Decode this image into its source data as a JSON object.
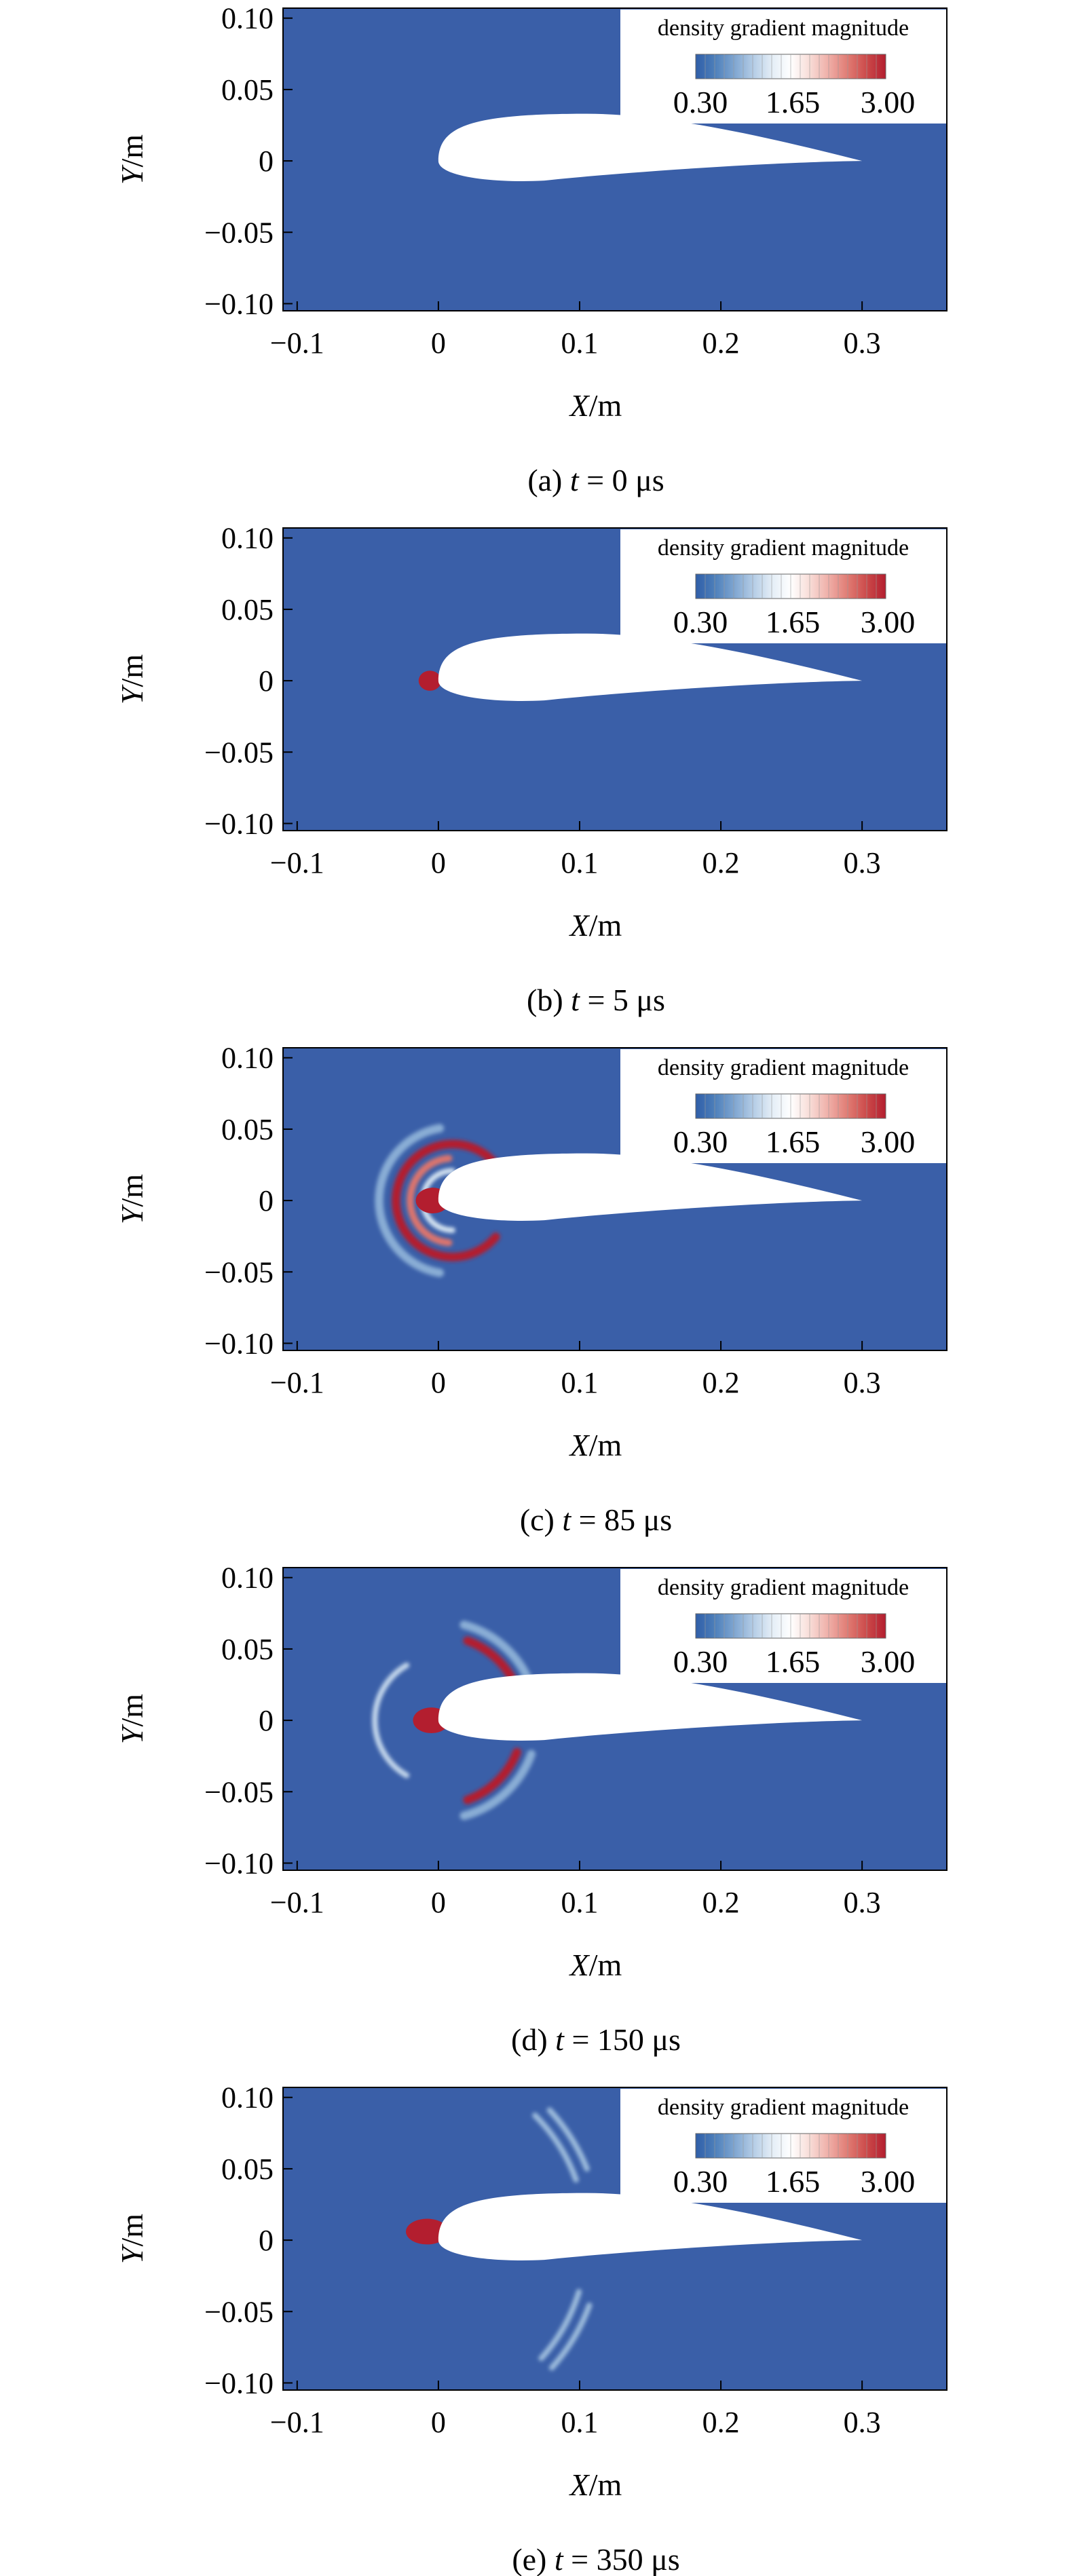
{
  "colors": {
    "field": "#3a5fa8",
    "background": "#ffffff",
    "colormap": [
      "#2f5ea8",
      "#4d7fba",
      "#7da4d0",
      "#b2cbe5",
      "#e3edf6",
      "#ffffff",
      "#f8dcd7",
      "#efaea7",
      "#e07b73",
      "#cc4a4a",
      "#b31e2f"
    ]
  },
  "chart_data": [
    {
      "type": "heatmap",
      "panel_label": "(a)",
      "time_symbol": "t",
      "time_value": "= 0 μs",
      "xlabel_symbol": "X",
      "xlabel_unit": "/m",
      "ylabel_symbol": "Y",
      "ylabel_unit": "/m",
      "xlim": [
        -0.11,
        0.36
      ],
      "ylim": [
        -0.105,
        0.107
      ],
      "xticks": [
        -0.1,
        0,
        0.1,
        0.2,
        0.3
      ],
      "xtick_labels": [
        "−0.1",
        "0",
        "0.1",
        "0.2",
        "0.3"
      ],
      "yticks": [
        0.1,
        0.05,
        0,
        -0.05,
        -0.1
      ],
      "ytick_labels": [
        "0.10",
        "0.05",
        "0",
        "−0.05",
        "−0.10"
      ],
      "legend": {
        "title": "density gradient magnitude",
        "labels": [
          "0.30",
          "1.65",
          "3.00"
        ],
        "range": [
          0.3,
          3.0
        ],
        "placement": "top-right"
      },
      "airfoil": {
        "leading_edge": [
          0,
          0
        ],
        "trailing_edge": [
          0.3,
          0
        ],
        "max_upper_y": 0.033,
        "min_lower_y": -0.015
      },
      "features": []
    },
    {
      "type": "heatmap",
      "panel_label": "(b)",
      "time_symbol": "t",
      "time_value": "= 5 μs",
      "xlabel_symbol": "X",
      "xlabel_unit": "/m",
      "ylabel_symbol": "Y",
      "ylabel_unit": "/m",
      "xlim": [
        -0.11,
        0.36
      ],
      "ylim": [
        -0.105,
        0.107
      ],
      "xticks": [
        -0.1,
        0,
        0.1,
        0.2,
        0.3
      ],
      "xtick_labels": [
        "−0.1",
        "0",
        "0.1",
        "0.2",
        "0.3"
      ],
      "yticks": [
        0.1,
        0.05,
        0,
        -0.05,
        -0.1
      ],
      "ytick_labels": [
        "0.10",
        "0.05",
        "0",
        "−0.05",
        "−0.10"
      ],
      "legend": {
        "title": "density gradient magnitude",
        "labels": [
          "0.30",
          "1.65",
          "3.00"
        ],
        "range": [
          0.3,
          3.0
        ],
        "placement": "top-right"
      },
      "airfoil": {
        "leading_edge": [
          0,
          0
        ],
        "trailing_edge": [
          0.3,
          0
        ],
        "max_upper_y": 0.033,
        "min_lower_y": -0.015
      },
      "features": [
        {
          "kind": "blob",
          "x": -0.006,
          "y": 0.0,
          "rx": 0.008,
          "ry": 0.007,
          "level": 3.0
        }
      ]
    },
    {
      "type": "heatmap",
      "panel_label": "(c)",
      "time_symbol": "t",
      "time_value": "= 85 μs",
      "xlabel_symbol": "X",
      "xlabel_unit": "/m",
      "ylabel_symbol": "Y",
      "ylabel_unit": "/m",
      "xlim": [
        -0.11,
        0.36
      ],
      "ylim": [
        -0.105,
        0.107
      ],
      "xticks": [
        -0.1,
        0,
        0.1,
        0.2,
        0.3
      ],
      "xtick_labels": [
        "−0.1",
        "0",
        "0.1",
        "0.2",
        "0.3"
      ],
      "yticks": [
        0.1,
        0.05,
        0,
        -0.05,
        -0.1
      ],
      "ytick_labels": [
        "0.10",
        "0.05",
        "0",
        "−0.05",
        "−0.10"
      ],
      "legend": {
        "title": "density gradient magnitude",
        "labels": [
          "0.30",
          "1.65",
          "3.00"
        ],
        "range": [
          0.3,
          3.0
        ],
        "placement": "top-right"
      },
      "airfoil": {
        "leading_edge": [
          0,
          0
        ],
        "trailing_edge": [
          0.3,
          0
        ],
        "max_upper_y": 0.033,
        "min_lower_y": -0.015
      },
      "features": [
        {
          "kind": "arc",
          "cx": 0.01,
          "cy": 0.0,
          "r": 0.052,
          "from": 100,
          "to": 260,
          "width": 0.006,
          "level": 0.9
        },
        {
          "kind": "arc",
          "cx": 0.01,
          "cy": 0.0,
          "r": 0.04,
          "from": 40,
          "to": 320,
          "width": 0.006,
          "level": 3.0
        },
        {
          "kind": "arc",
          "cx": 0.01,
          "cy": 0.0,
          "r": 0.03,
          "from": 95,
          "to": 265,
          "width": 0.005,
          "level": 2.5
        },
        {
          "kind": "arc",
          "cx": 0.01,
          "cy": 0.0,
          "r": 0.021,
          "from": 90,
          "to": 270,
          "width": 0.004,
          "level": 1.3
        },
        {
          "kind": "blob",
          "x": -0.004,
          "y": 0.0,
          "rx": 0.012,
          "ry": 0.009,
          "level": 3.0
        }
      ]
    },
    {
      "type": "heatmap",
      "panel_label": "(d)",
      "time_symbol": "t",
      "time_value": "= 150 μs",
      "xlabel_symbol": "X",
      "xlabel_unit": "/m",
      "ylabel_symbol": "Y",
      "ylabel_unit": "/m",
      "xlim": [
        -0.11,
        0.36
      ],
      "ylim": [
        -0.105,
        0.107
      ],
      "xticks": [
        -0.1,
        0,
        0.1,
        0.2,
        0.3
      ],
      "xtick_labels": [
        "−0.1",
        "0",
        "0.1",
        "0.2",
        "0.3"
      ],
      "yticks": [
        0.1,
        0.05,
        0,
        -0.05,
        -0.1
      ],
      "ytick_labels": [
        "0.10",
        "0.05",
        "0",
        "−0.05",
        "−0.10"
      ],
      "legend": {
        "title": "density gradient magnitude",
        "labels": [
          "0.30",
          "1.65",
          "3.00"
        ],
        "range": [
          0.3,
          3.0
        ],
        "placement": "top-right"
      },
      "airfoil": {
        "leading_edge": [
          0,
          0
        ],
        "trailing_edge": [
          0.3,
          0
        ],
        "max_upper_y": 0.033,
        "min_lower_y": -0.015
      },
      "features": [
        {
          "kind": "arc",
          "cx": 0.0,
          "cy": 0.0,
          "r": 0.07,
          "from": 20,
          "to": 75,
          "width": 0.006,
          "level": 0.9
        },
        {
          "kind": "arc",
          "cx": 0.0,
          "cy": 0.0,
          "r": 0.06,
          "from": 22,
          "to": 70,
          "width": 0.006,
          "level": 3.0
        },
        {
          "kind": "arc",
          "cx": 0.0,
          "cy": 0.0,
          "r": 0.07,
          "from": 285,
          "to": 340,
          "width": 0.006,
          "level": 0.9
        },
        {
          "kind": "arc",
          "cx": 0.0,
          "cy": 0.0,
          "r": 0.06,
          "from": 290,
          "to": 338,
          "width": 0.006,
          "level": 3.0
        },
        {
          "kind": "arc",
          "cx": 0.0,
          "cy": 0.0,
          "r": 0.045,
          "from": 120,
          "to": 240,
          "width": 0.004,
          "level": 1.2
        },
        {
          "kind": "blob",
          "x": -0.005,
          "y": 0.0,
          "rx": 0.013,
          "ry": 0.009,
          "level": 3.0
        }
      ]
    },
    {
      "type": "heatmap",
      "panel_label": "(e)",
      "time_symbol": "t",
      "time_value": "= 350 μs",
      "xlabel_symbol": "X",
      "xlabel_unit": "/m",
      "ylabel_symbol": "Y",
      "ylabel_unit": "/m",
      "xlim": [
        -0.11,
        0.36
      ],
      "ylim": [
        -0.105,
        0.107
      ],
      "xticks": [
        -0.1,
        0,
        0.1,
        0.2,
        0.3
      ],
      "xtick_labels": [
        "−0.1",
        "0",
        "0.1",
        "0.2",
        "0.3"
      ],
      "yticks": [
        0.1,
        0.05,
        0,
        -0.05,
        -0.1
      ],
      "ytick_labels": [
        "0.10",
        "0.05",
        "0",
        "−0.05",
        "−0.10"
      ],
      "legend": {
        "title": "density gradient magnitude",
        "labels": [
          "0.30",
          "1.65",
          "3.00"
        ],
        "range": [
          0.3,
          3.0
        ],
        "placement": "top-right"
      },
      "airfoil": {
        "leading_edge": [
          0,
          0
        ],
        "trailing_edge": [
          0.3,
          0
        ],
        "max_upper_y": 0.033,
        "min_lower_y": -0.015
      },
      "features": [
        {
          "kind": "arc",
          "cx": -0.02,
          "cy": 0.0,
          "r": 0.125,
          "from": 20,
          "to": 45,
          "width": 0.004,
          "level": 1.0
        },
        {
          "kind": "arc",
          "cx": -0.02,
          "cy": 0.0,
          "r": 0.135,
          "from": 22,
          "to": 43,
          "width": 0.004,
          "level": 1.0
        },
        {
          "kind": "arc",
          "cx": -0.02,
          "cy": 0.0,
          "r": 0.125,
          "from": 318,
          "to": 343,
          "width": 0.004,
          "level": 1.0
        },
        {
          "kind": "arc",
          "cx": -0.02,
          "cy": 0.0,
          "r": 0.135,
          "from": 318,
          "to": 340,
          "width": 0.004,
          "level": 1.0
        },
        {
          "kind": "blob",
          "x": -0.008,
          "y": 0.006,
          "rx": 0.015,
          "ry": 0.009,
          "level": 3.0
        }
      ]
    }
  ]
}
